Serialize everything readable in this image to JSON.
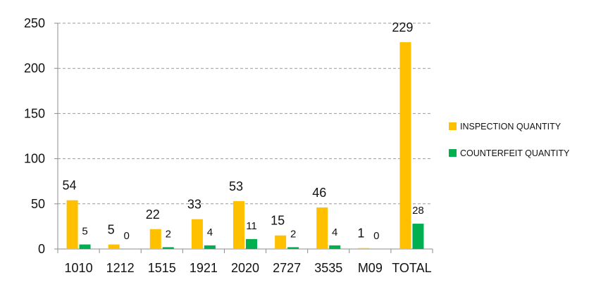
{
  "chart_data": {
    "type": "bar",
    "title": "",
    "xlabel": "",
    "ylabel": "",
    "ylim": [
      0,
      250
    ],
    "y_ticks": [
      0,
      50,
      100,
      150,
      200,
      250
    ],
    "grid": "horizontal-dashed",
    "legend_position": "right",
    "categories": [
      "1010",
      "1212",
      "1515",
      "1921",
      "2020",
      "2727",
      "3535",
      "M09",
      "TOTAL"
    ],
    "series": [
      {
        "name": "INSPECTION QUANTITY",
        "color": "#FFC000",
        "values": [
          54,
          5,
          22,
          33,
          53,
          15,
          46,
          1,
          229
        ]
      },
      {
        "name": "COUNTERFEIT QUANTITY",
        "color": "#00B050",
        "values": [
          5,
          0,
          2,
          4,
          11,
          2,
          4,
          0,
          28
        ]
      }
    ]
  }
}
